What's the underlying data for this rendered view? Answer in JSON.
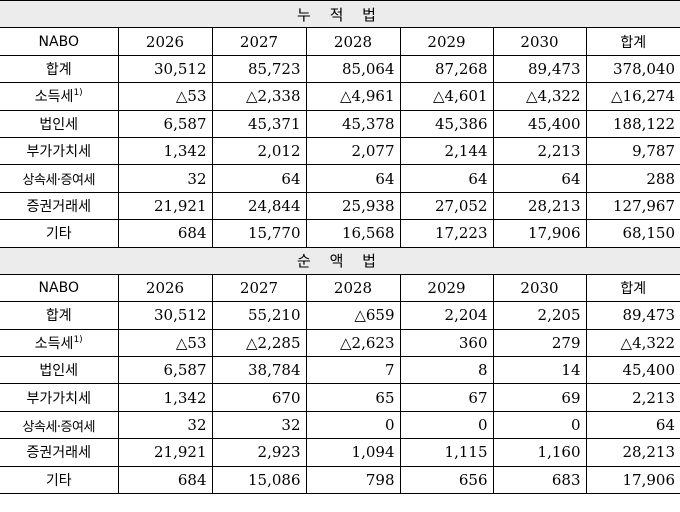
{
  "sections": [
    {
      "title": "누 적 법",
      "header": [
        "NABO",
        "2026",
        "2027",
        "2028",
        "2029",
        "2030",
        "합계"
      ],
      "rows": [
        {
          "label": "합계",
          "values": [
            "30,512",
            "85,723",
            "85,064",
            "87,268",
            "89,473",
            "378,040"
          ]
        },
        {
          "label": "소득세",
          "sup": "1)",
          "values": [
            "△53",
            "△2,338",
            "△4,961",
            "△4,601",
            "△4,322",
            "△16,274"
          ]
        },
        {
          "label": "법인세",
          "values": [
            "6,587",
            "45,371",
            "45,378",
            "45,386",
            "45,400",
            "188,122"
          ]
        },
        {
          "label": "부가가치세",
          "values": [
            "1,342",
            "2,012",
            "2,077",
            "2,144",
            "2,213",
            "9,787"
          ]
        },
        {
          "label": "상속세·증여세",
          "values": [
            "32",
            "64",
            "64",
            "64",
            "64",
            "288"
          ]
        },
        {
          "label": "증권거래세",
          "values": [
            "21,921",
            "24,844",
            "25,938",
            "27,052",
            "28,213",
            "127,967"
          ]
        },
        {
          "label": "기타",
          "values": [
            "684",
            "15,770",
            "16,568",
            "17,223",
            "17,906",
            "68,150"
          ]
        }
      ]
    },
    {
      "title": "순 액 법",
      "header": [
        "NABO",
        "2026",
        "2027",
        "2028",
        "2029",
        "2030",
        "합계"
      ],
      "rows": [
        {
          "label": "합계",
          "values": [
            "30,512",
            "55,210",
            "△659",
            "2,204",
            "2,205",
            "89,473"
          ]
        },
        {
          "label": "소득세",
          "sup": "1)",
          "values": [
            "△53",
            "△2,285",
            "△2,623",
            "360",
            "279",
            "△4,322"
          ]
        },
        {
          "label": "법인세",
          "values": [
            "6,587",
            "38,784",
            "7",
            "8",
            "14",
            "45,400"
          ]
        },
        {
          "label": "부가가치세",
          "values": [
            "1,342",
            "670",
            "65",
            "67",
            "69",
            "2,213"
          ]
        },
        {
          "label": "상속세·증여세",
          "values": [
            "32",
            "32",
            "0",
            "0",
            "0",
            "64"
          ]
        },
        {
          "label": "증권거래세",
          "values": [
            "21,921",
            "2,923",
            "1,094",
            "1,115",
            "1,160",
            "28,213"
          ]
        },
        {
          "label": "기타",
          "values": [
            "684",
            "15,086",
            "798",
            "656",
            "683",
            "17,906"
          ]
        }
      ]
    }
  ]
}
